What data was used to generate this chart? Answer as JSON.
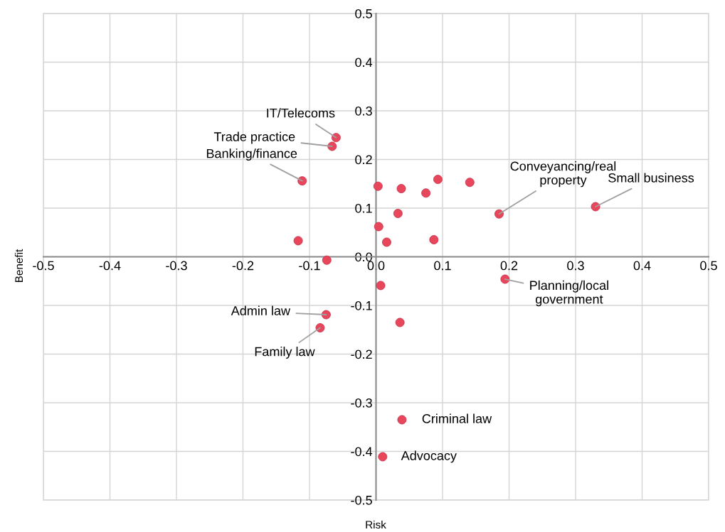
{
  "chart_data": {
    "type": "scatter",
    "xlabel": "Risk",
    "ylabel": "Benefit",
    "x": [
      -0.06,
      -0.066,
      -0.111,
      0.003,
      0.038,
      0.075,
      0.093,
      0.141,
      0.033,
      0.004,
      0.016,
      0.087,
      -0.117,
      -0.074,
      0.185,
      0.33,
      0.194,
      0.007,
      -0.075,
      -0.084,
      0.036,
      0.039,
      0.01
    ],
    "series": [
      {
        "color": "#e8465a",
        "values": [
          0.245,
          0.227,
          0.156,
          0.145,
          0.14,
          0.131,
          0.159,
          0.153,
          0.089,
          0.062,
          0.03,
          0.035,
          0.033,
          -0.007,
          0.088,
          0.103,
          -0.046,
          -0.059,
          -0.119,
          -0.146,
          -0.135,
          -0.335,
          -0.411
        ]
      }
    ],
    "xlim": [
      -0.5,
      0.5
    ],
    "ylim": [
      -0.5,
      0.5
    ],
    "xticks": [
      -0.5,
      -0.4,
      -0.3,
      -0.2,
      -0.1,
      {
        "value": 0,
        "label": "0.0"
      },
      0.1,
      0.2,
      0.3,
      0.4,
      0.5
    ],
    "yticks": [
      -0.5,
      -0.4,
      -0.3,
      -0.2,
      -0.1,
      {
        "value": 0,
        "label": "0.0"
      },
      0.1,
      0.2,
      0.3,
      0.4,
      0.5
    ],
    "grid": true,
    "marker": "circle",
    "annotations": [
      {
        "text": "IT/Telecoms",
        "x": -0.06,
        "y": 0.245
      },
      {
        "text": "Trade practice",
        "x": -0.066,
        "y": 0.227
      },
      {
        "text": "Banking/finance",
        "x": -0.111,
        "y": 0.156
      },
      {
        "text": "Conveyancing/real\nproperty",
        "x": 0.185,
        "y": 0.088
      },
      {
        "text": "Small business",
        "x": 0.33,
        "y": 0.103
      },
      {
        "text": "Planning/local\ngovernment",
        "x": 0.194,
        "y": -0.046
      },
      {
        "text": "Admin law",
        "x": -0.075,
        "y": -0.119
      },
      {
        "text": "Family law",
        "x": -0.084,
        "y": -0.146
      },
      {
        "text": "Criminal law",
        "x": 0.039,
        "y": -0.335
      },
      {
        "text": "Advocacy",
        "x": 0.01,
        "y": -0.411
      }
    ]
  }
}
